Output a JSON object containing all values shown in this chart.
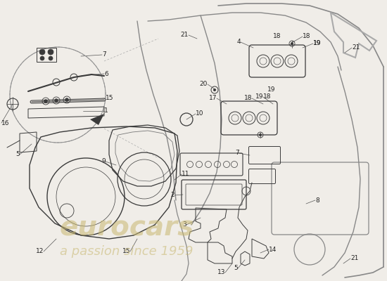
{
  "bg_color": "#f0ede8",
  "line_color": "#3a3a3a",
  "light_line": "#888888",
  "figsize": [
    5.5,
    4.0
  ],
  "dpi": 100,
  "watermark1": "eurocars",
  "watermark2": "a passion since 1959",
  "wm_color": "#c8b870",
  "wm_alpha": 0.55
}
